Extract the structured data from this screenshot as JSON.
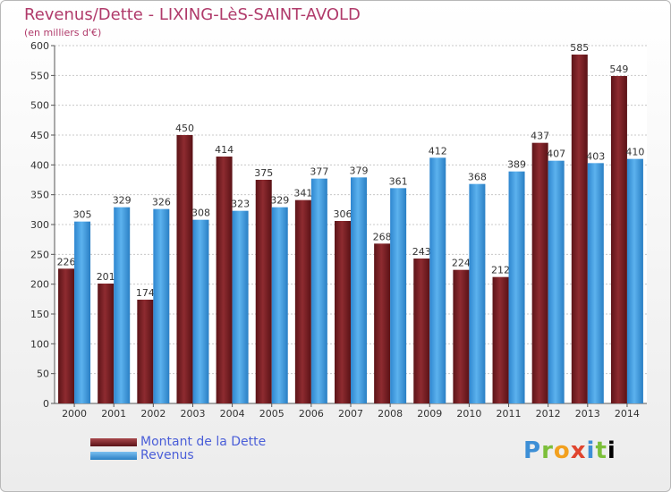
{
  "chart_data": {
    "type": "bar",
    "title": "Revenus/Dette - LIXING-LèS-SAINT-AVOLD",
    "subtitle": "(en milliers d'€)",
    "xlabel": "",
    "ylabel": "",
    "ylim": [
      0,
      600
    ],
    "yticks": [
      "0",
      "50",
      "100",
      "150",
      "200",
      "250",
      "300",
      "350",
      "400",
      "450",
      "500",
      "550",
      "600"
    ],
    "grid": true,
    "legend_position": "bottom-left",
    "categories": [
      "2000",
      "2001",
      "2002",
      "2003",
      "2004",
      "2005",
      "2006",
      "2007",
      "2008",
      "2009",
      "2010",
      "2011",
      "2012",
      "2013",
      "2014"
    ],
    "series": [
      {
        "name": "Montant de la Dette",
        "color": "#7a1f24",
        "values": [
          226,
          201,
          174,
          450,
          414,
          375,
          341,
          306,
          268,
          243,
          224,
          212,
          437,
          585,
          549
        ],
        "labels": [
          "226",
          "201",
          "174",
          "450",
          "414",
          "375",
          "341",
          "306",
          "268",
          "243",
          "224",
          "212",
          "437",
          "585",
          "549"
        ]
      },
      {
        "name": "Revenus",
        "color": "#3d9be0",
        "values": [
          305,
          329,
          326,
          308,
          323,
          329,
          377,
          379,
          361,
          412,
          368,
          389,
          407,
          403,
          410
        ],
        "labels": [
          "305",
          "329",
          "326",
          "308",
          "323",
          "329",
          "377",
          "379",
          "361",
          "412",
          "368",
          "389",
          "407",
          "403",
          "410"
        ]
      }
    ]
  },
  "logo": {
    "letters": [
      "P",
      "r",
      "o",
      "x",
      "i",
      "t",
      "i"
    ]
  }
}
